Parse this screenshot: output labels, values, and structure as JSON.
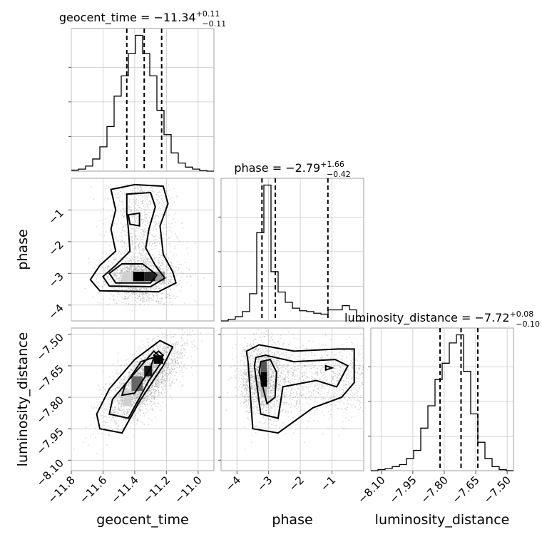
{
  "chart_data": {
    "type": "corner",
    "parameters": [
      "geocent_time",
      "phase",
      "luminosity_distance"
    ],
    "axis_labels": {
      "geocent_time": "geocent_time",
      "phase": "phase",
      "luminosity_distance": "luminosity_distance"
    },
    "titles": [
      {
        "parameter": "geocent_time",
        "label": "geocent_time",
        "median": "−11.34",
        "plus": "+0.11",
        "minus": "−0.11"
      },
      {
        "parameter": "phase",
        "label": "phase",
        "median": "−2.79",
        "plus": "+1.66",
        "minus": "−0.42"
      },
      {
        "parameter": "luminosity_distance",
        "label": "luminosity_distance",
        "median": "−7.72",
        "plus": "+0.08",
        "minus": "−0.10"
      }
    ],
    "ranges": {
      "geocent_time": [
        -11.8,
        -10.9
      ],
      "phase": [
        -4.5,
        0.0
      ],
      "luminosity_distance": [
        -8.15,
        -7.47
      ]
    },
    "ticks": {
      "geocent_time": {
        "values": [
          -11.8,
          -11.6,
          -11.4,
          -11.2,
          -11.0
        ],
        "labels": [
          "−11.8",
          "−11.6",
          "−11.4",
          "−11.2",
          "−11.0"
        ]
      },
      "phase": {
        "values": [
          -4,
          -3,
          -2,
          -1
        ],
        "labels": [
          "−4",
          "−3",
          "−2",
          "−1"
        ]
      },
      "luminosity_distance": {
        "values": [
          -8.1,
          -7.95,
          -7.8,
          -7.65,
          -7.5
        ],
        "labels": [
          "−8.10",
          "−7.95",
          "−7.80",
          "−7.65",
          "−7.50"
        ]
      }
    },
    "quantiles": {
      "geocent_time": [
        -11.45,
        -11.34,
        -11.23
      ],
      "phase": [
        -3.21,
        -2.79,
        -1.13
      ],
      "luminosity_distance": [
        -7.82,
        -7.72,
        -7.64
      ]
    },
    "histograms": {
      "geocent_time": {
        "edges": [
          -11.8,
          -10.9
        ],
        "counts": [
          0.5,
          1,
          2.5,
          6,
          12,
          22,
          37,
          47,
          58,
          67,
          58,
          47,
          30,
          18,
          9,
          4,
          2,
          1,
          0.3,
          0
        ]
      },
      "phase": {
        "edges": [
          -4.5,
          0.0
        ],
        "counts": [
          0,
          1,
          2.5,
          5.5,
          16,
          52,
          80,
          29,
          17,
          11,
          7.5,
          6,
          5.5,
          4.5,
          4,
          6.5,
          6.5,
          9,
          6.5,
          0
        ]
      },
      "luminosity_distance": {
        "edges": [
          -8.15,
          -7.47
        ],
        "counts": [
          0,
          0.5,
          1,
          2,
          3,
          6,
          10,
          21,
          32,
          45,
          53,
          63,
          67,
          49,
          28,
          14,
          6,
          2,
          0.5,
          0
        ]
      }
    },
    "pairs": [
      {
        "x": "geocent_time",
        "y": "phase"
      },
      {
        "x": "geocent_time",
        "y": "luminosity_distance"
      },
      {
        "x": "phase",
        "y": "luminosity_distance"
      }
    ],
    "grid": true,
    "legend": "none"
  }
}
